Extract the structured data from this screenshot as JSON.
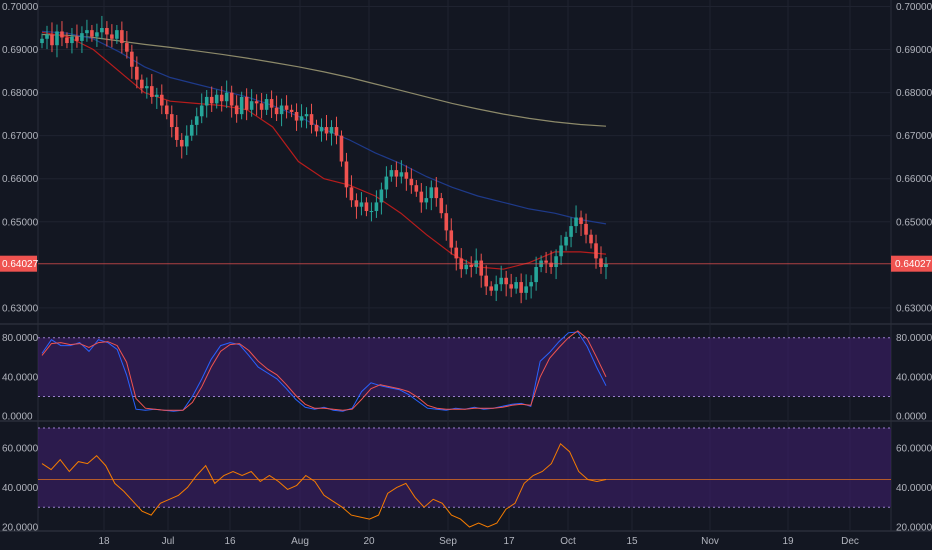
{
  "chart_data": [
    {
      "type": "candlestick",
      "panel": "price",
      "x_ticks": [
        "18",
        "Jul",
        "16",
        "Aug",
        "20",
        "Sep",
        "17",
        "Oct",
        "15",
        "Nov",
        "19",
        "Dec"
      ],
      "y_ticks": [
        "0.70000",
        "0.69000",
        "0.68000",
        "0.67000",
        "0.66000",
        "0.65000",
        "0.63000"
      ],
      "y_tick_values": [
        0.7,
        0.69,
        0.68,
        0.67,
        0.66,
        0.65,
        0.63
      ],
      "ylim": [
        0.6265,
        0.7015
      ],
      "grid": true,
      "last_price": "0.64027",
      "last_price_value": 0.64027,
      "colors": {
        "up": "#26a69a",
        "down": "#ef5350",
        "last_price": "#ef5350",
        "ma_fast": "#b71c1c",
        "ma_mid": "#1e3a8a",
        "ma_slow": "#8d8a6a"
      },
      "closes": [
        0.6925,
        0.6935,
        0.691,
        0.6942,
        0.6928,
        0.6915,
        0.693,
        0.692,
        0.6938,
        0.6945,
        0.693,
        0.694,
        0.695,
        0.6935,
        0.6925,
        0.6945,
        0.6915,
        0.6895,
        0.686,
        0.683,
        0.681,
        0.6815,
        0.679,
        0.6795,
        0.677,
        0.675,
        0.672,
        0.669,
        0.6675,
        0.67,
        0.6725,
        0.6745,
        0.677,
        0.679,
        0.6775,
        0.6795,
        0.678,
        0.68,
        0.677,
        0.675,
        0.679,
        0.676,
        0.678,
        0.6775,
        0.676,
        0.6785,
        0.6765,
        0.675,
        0.677,
        0.676,
        0.6755,
        0.6735,
        0.6745,
        0.675,
        0.6725,
        0.671,
        0.672,
        0.6705,
        0.672,
        0.67,
        0.664,
        0.658,
        0.655,
        0.6535,
        0.6545,
        0.6525,
        0.6525,
        0.6545,
        0.6575,
        0.6605,
        0.662,
        0.6605,
        0.6615,
        0.66,
        0.6585,
        0.657,
        0.6545,
        0.6555,
        0.658,
        0.6555,
        0.652,
        0.648,
        0.644,
        0.6415,
        0.639,
        0.64,
        0.6395,
        0.641,
        0.6375,
        0.635,
        0.634,
        0.6355,
        0.637,
        0.6355,
        0.6345,
        0.636,
        0.6335,
        0.635,
        0.636,
        0.6395,
        0.641,
        0.6405,
        0.6395,
        0.642,
        0.6445,
        0.6465,
        0.649,
        0.651,
        0.6495,
        0.647,
        0.645,
        0.6415,
        0.6395,
        0.6402
      ],
      "open_first": 0.6915,
      "range_hint": {
        "min": 0.6325,
        "max": 0.698
      },
      "ma_fast_anchor_closes": [
        0.694,
        0.693,
        0.69,
        0.685,
        0.68,
        0.678,
        0.6775,
        0.677,
        0.676,
        0.672,
        0.664,
        0.66,
        0.6585,
        0.656,
        0.652,
        0.647,
        0.6425,
        0.6395,
        0.639,
        0.6405,
        0.643,
        0.643,
        0.6425
      ],
      "ma_mid_anchor_closes": [
        0.6942,
        0.6938,
        0.6925,
        0.6895,
        0.686,
        0.6835,
        0.682,
        0.6805,
        0.679,
        0.677,
        0.6745,
        0.6715,
        0.669,
        0.666,
        0.6635,
        0.6605,
        0.658,
        0.656,
        0.6545,
        0.653,
        0.652,
        0.6505,
        0.6495
      ],
      "ma_slow_anchor_closes": [
        0.6935,
        0.6933,
        0.6928,
        0.692,
        0.6912,
        0.6905,
        0.6897,
        0.6889,
        0.688,
        0.687,
        0.686,
        0.6848,
        0.6835,
        0.682,
        0.6805,
        0.679,
        0.6775,
        0.6762,
        0.675,
        0.674,
        0.6732,
        0.6726,
        0.6722
      ]
    },
    {
      "type": "line",
      "panel": "oscillator-stochastic",
      "y_ticks": [
        "80.0000",
        "40.0000",
        "0.0000"
      ],
      "y_tick_values": [
        80,
        40,
        0
      ],
      "ylim": [
        -4,
        93
      ],
      "band": [
        20,
        80
      ],
      "series": [
        {
          "color": "#2962ff",
          "values": [
            64,
            78,
            72,
            72,
            75,
            66,
            78,
            75,
            68,
            42,
            7,
            6,
            7,
            6,
            5,
            6,
            20,
            38,
            58,
            72,
            75,
            73,
            62,
            50,
            44,
            38,
            28,
            17,
            9,
            7,
            9,
            6,
            5,
            8,
            25,
            34,
            31,
            29,
            27,
            22,
            15,
            8,
            7,
            6,
            8,
            7,
            9,
            7,
            8,
            10,
            12,
            13,
            10,
            56,
            65,
            76,
            85,
            86,
            71,
            50,
            31
          ]
        },
        {
          "color": "#ef5350",
          "values": [
            62,
            74,
            75,
            73,
            74,
            70,
            75,
            76,
            72,
            55,
            18,
            8,
            7,
            6,
            6,
            6,
            14,
            30,
            50,
            66,
            73,
            74,
            67,
            56,
            48,
            42,
            32,
            21,
            12,
            8,
            8,
            7,
            6,
            7,
            17,
            28,
            32,
            30,
            28,
            25,
            19,
            11,
            8,
            7,
            7,
            7,
            8,
            8,
            8,
            9,
            11,
            12,
            11,
            40,
            59,
            70,
            80,
            87,
            79,
            60,
            40
          ]
        }
      ]
    },
    {
      "type": "line",
      "panel": "oscillator-rsi",
      "y_ticks": [
        "60.0000",
        "40.0000",
        "20.0000"
      ],
      "y_tick_values": [
        60,
        40,
        20
      ],
      "ylim": [
        18,
        73
      ],
      "band": [
        30,
        70
      ],
      "midline": 44,
      "series": [
        {
          "color": "#f57c00",
          "values": [
            52,
            49,
            54,
            48,
            53,
            52,
            56,
            51,
            42,
            38,
            33,
            28,
            26,
            32,
            34,
            36,
            40,
            46,
            51,
            42,
            46,
            48,
            46,
            48,
            43,
            46,
            43,
            39,
            41,
            46,
            43,
            36,
            33,
            30,
            26,
            25,
            24,
            26,
            37,
            40,
            42,
            35,
            30,
            34,
            32,
            26,
            24,
            20,
            22,
            20,
            22,
            29,
            32,
            42,
            46,
            48,
            52,
            62,
            58,
            48,
            44,
            43,
            44
          ]
        }
      ]
    }
  ]
}
